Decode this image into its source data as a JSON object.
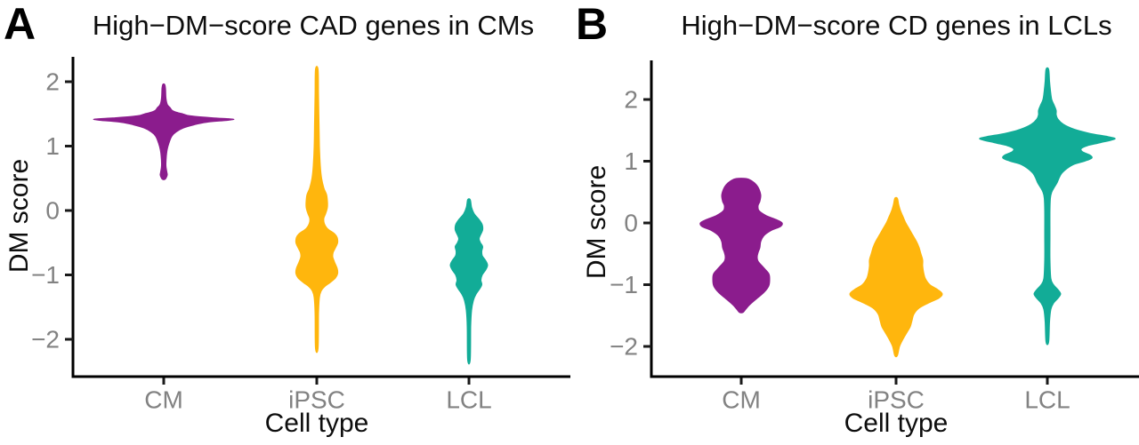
{
  "figure": {
    "background": "#ffffff",
    "axis_color": "#000000",
    "tick_color": "#1a1a1a",
    "tick_label_color": "#828282",
    "text_color": "#0d0d0d"
  },
  "chart_data": [
    {
      "type": "violin",
      "panel_letter": "A",
      "title": "High−DM−score CAD genes in CMs",
      "xlabel": "Cell type",
      "ylabel": "DM score",
      "categories": [
        "CM",
        "iPSC",
        "LCL"
      ],
      "y_tick_values": [
        2,
        1,
        0,
        -1,
        -2
      ],
      "y_tick_labels": [
        "2",
        "1",
        "0",
        "−1",
        "−2"
      ],
      "ylim": [
        -2.6,
        2.4
      ],
      "grid": false,
      "legend": false,
      "violins": [
        {
          "category": "CM",
          "color": "#8B1C8D",
          "dm_min": 0.48,
          "dm_max": 1.96,
          "widest_at_dm": 1.42,
          "profile": [
            [
              1.96,
              1
            ],
            [
              1.9,
              2
            ],
            [
              1.75,
              2.5
            ],
            [
              1.65,
              4
            ],
            [
              1.6,
              7
            ],
            [
              1.55,
              10
            ],
            [
              1.52,
              16
            ],
            [
              1.5,
              22
            ],
            [
              1.47,
              30
            ],
            [
              1.44,
              55
            ],
            [
              1.42,
              78
            ],
            [
              1.4,
              72
            ],
            [
              1.37,
              48
            ],
            [
              1.33,
              34
            ],
            [
              1.28,
              22
            ],
            [
              1.22,
              14
            ],
            [
              1.15,
              9
            ],
            [
              1.05,
              6
            ],
            [
              0.95,
              4
            ],
            [
              0.85,
              3
            ],
            [
              0.7,
              2.5
            ],
            [
              0.6,
              3.5
            ],
            [
              0.55,
              4
            ],
            [
              0.5,
              2.5
            ],
            [
              0.48,
              1
            ]
          ]
        },
        {
          "category": "iPSC",
          "color": "#FFB60D",
          "dm_min": -2.14,
          "dm_max": 2.19,
          "widest_at_dm": -0.95,
          "profile": [
            [
              2.19,
              1.5
            ],
            [
              1.8,
              2
            ],
            [
              1.4,
              2.5
            ],
            [
              1.0,
              3
            ],
            [
              0.7,
              4
            ],
            [
              0.5,
              5.5
            ],
            [
              0.35,
              8
            ],
            [
              0.25,
              11
            ],
            [
              0.15,
              12
            ],
            [
              0.05,
              12
            ],
            [
              -0.05,
              10
            ],
            [
              -0.12,
              8
            ],
            [
              -0.2,
              8.5
            ],
            [
              -0.28,
              12
            ],
            [
              -0.36,
              20
            ],
            [
              -0.42,
              23
            ],
            [
              -0.5,
              23.5
            ],
            [
              -0.58,
              21
            ],
            [
              -0.65,
              18.5
            ],
            [
              -0.72,
              18
            ],
            [
              -0.8,
              20
            ],
            [
              -0.9,
              23
            ],
            [
              -0.98,
              23.5
            ],
            [
              -1.05,
              21
            ],
            [
              -1.12,
              15
            ],
            [
              -1.18,
              9
            ],
            [
              -1.25,
              5
            ],
            [
              -1.35,
              3
            ],
            [
              -1.6,
              2
            ],
            [
              -2.14,
              1.5
            ]
          ]
        },
        {
          "category": "LCL",
          "color": "#12AC97",
          "dm_min": -2.32,
          "dm_max": 0.17,
          "widest_at_dm": -0.85,
          "profile": [
            [
              0.17,
              1.5
            ],
            [
              0.05,
              3
            ],
            [
              -0.05,
              6
            ],
            [
              -0.15,
              12
            ],
            [
              -0.22,
              15
            ],
            [
              -0.3,
              15.5
            ],
            [
              -0.38,
              13
            ],
            [
              -0.44,
              11.5
            ],
            [
              -0.5,
              13
            ],
            [
              -0.56,
              15.5
            ],
            [
              -0.63,
              14.5
            ],
            [
              -0.7,
              15
            ],
            [
              -0.78,
              19
            ],
            [
              -0.85,
              21
            ],
            [
              -0.92,
              19
            ],
            [
              -1.0,
              15
            ],
            [
              -1.08,
              13.5
            ],
            [
              -1.15,
              14.5
            ],
            [
              -1.22,
              12
            ],
            [
              -1.3,
              8
            ],
            [
              -1.4,
              5
            ],
            [
              -1.55,
              3
            ],
            [
              -1.8,
              2
            ],
            [
              -2.32,
              1.5
            ]
          ]
        }
      ]
    },
    {
      "type": "violin",
      "panel_letter": "B",
      "title": "High−DM−score CD genes in LCLs",
      "xlabel": "Cell type",
      "ylabel": "DM score",
      "categories": [
        "CM",
        "iPSC",
        "LCL"
      ],
      "y_tick_values": [
        2,
        1,
        0,
        -1,
        -2
      ],
      "y_tick_labels": [
        "2",
        "1",
        "0",
        "−1",
        "−2"
      ],
      "ylim": [
        -2.5,
        2.6
      ],
      "grid": false,
      "legend": false,
      "violins": [
        {
          "category": "CM",
          "color": "#8B1C8D",
          "dm_min": -1.45,
          "dm_max": 0.72,
          "widest_at_dm": 0.0,
          "profile": [
            [
              0.72,
              6
            ],
            [
              0.68,
              12
            ],
            [
              0.62,
              17
            ],
            [
              0.55,
              20
            ],
            [
              0.45,
              22
            ],
            [
              0.35,
              21
            ],
            [
              0.28,
              19
            ],
            [
              0.2,
              20
            ],
            [
              0.12,
              28
            ],
            [
              0.05,
              40
            ],
            [
              0.0,
              46
            ],
            [
              -0.06,
              44
            ],
            [
              -0.12,
              34
            ],
            [
              -0.2,
              26
            ],
            [
              -0.3,
              22
            ],
            [
              -0.4,
              21
            ],
            [
              -0.48,
              19
            ],
            [
              -0.55,
              18
            ],
            [
              -0.62,
              19
            ],
            [
              -0.72,
              25
            ],
            [
              -0.82,
              31
            ],
            [
              -0.92,
              32
            ],
            [
              -1.02,
              31
            ],
            [
              -1.12,
              26
            ],
            [
              -1.22,
              18
            ],
            [
              -1.32,
              10
            ],
            [
              -1.4,
              5
            ],
            [
              -1.45,
              2
            ]
          ]
        },
        {
          "category": "iPSC",
          "color": "#FFB60D",
          "dm_min": -2.15,
          "dm_max": 0.4,
          "widest_at_dm": -1.15,
          "profile": [
            [
              0.4,
              1.5
            ],
            [
              0.3,
              3
            ],
            [
              0.2,
              5
            ],
            [
              0.1,
              8
            ],
            [
              0.0,
              11
            ],
            [
              -0.1,
              15
            ],
            [
              -0.2,
              19
            ],
            [
              -0.3,
              23
            ],
            [
              -0.4,
              26
            ],
            [
              -0.5,
              28
            ],
            [
              -0.6,
              30
            ],
            [
              -0.7,
              30
            ],
            [
              -0.8,
              31
            ],
            [
              -0.9,
              33
            ],
            [
              -1.0,
              38
            ],
            [
              -1.08,
              47
            ],
            [
              -1.15,
              52
            ],
            [
              -1.22,
              48
            ],
            [
              -1.3,
              36
            ],
            [
              -1.38,
              26
            ],
            [
              -1.48,
              20
            ],
            [
              -1.58,
              18
            ],
            [
              -1.68,
              16
            ],
            [
              -1.78,
              12
            ],
            [
              -1.88,
              8
            ],
            [
              -2.0,
              4
            ],
            [
              -2.15,
              1.5
            ]
          ]
        },
        {
          "category": "LCL",
          "color": "#12AC97",
          "dm_min": -1.93,
          "dm_max": 2.49,
          "widest_at_dm": 1.36,
          "profile": [
            [
              2.49,
              1.5
            ],
            [
              2.3,
              2.5
            ],
            [
              2.15,
              3.5
            ],
            [
              2.0,
              5
            ],
            [
              1.9,
              8
            ],
            [
              1.82,
              10
            ],
            [
              1.75,
              10
            ],
            [
              1.68,
              12
            ],
            [
              1.6,
              18
            ],
            [
              1.52,
              30
            ],
            [
              1.45,
              48
            ],
            [
              1.4,
              68
            ],
            [
              1.36,
              76
            ],
            [
              1.3,
              60
            ],
            [
              1.25,
              45
            ],
            [
              1.2,
              38
            ],
            [
              1.15,
              40
            ],
            [
              1.1,
              48
            ],
            [
              1.05,
              50
            ],
            [
              1.0,
              42
            ],
            [
              0.95,
              30
            ],
            [
              0.88,
              22
            ],
            [
              0.8,
              16
            ],
            [
              0.72,
              13
            ],
            [
              0.65,
              11
            ],
            [
              0.58,
              8
            ],
            [
              0.5,
              5
            ],
            [
              0.4,
              3.5
            ],
            [
              0.2,
              3
            ],
            [
              -0.2,
              3
            ],
            [
              -0.6,
              3
            ],
            [
              -0.9,
              4
            ],
            [
              -1.0,
              7
            ],
            [
              -1.08,
              12
            ],
            [
              -1.15,
              15
            ],
            [
              -1.22,
              12
            ],
            [
              -1.3,
              7
            ],
            [
              -1.4,
              4
            ],
            [
              -1.6,
              2.5
            ],
            [
              -1.93,
              1.5
            ]
          ]
        }
      ]
    }
  ]
}
